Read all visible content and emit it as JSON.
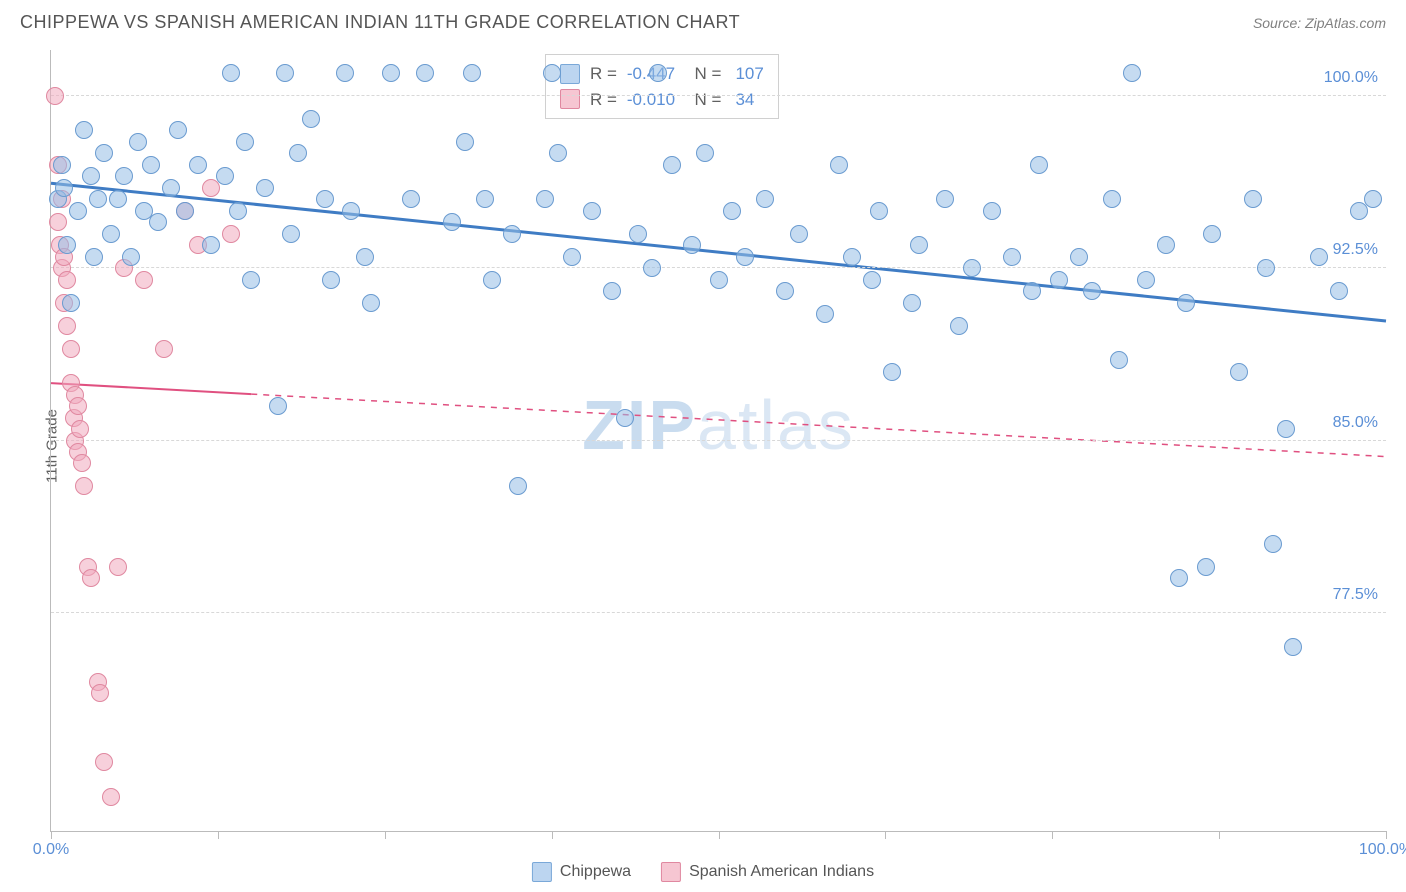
{
  "title": "CHIPPEWA VS SPANISH AMERICAN INDIAN 11TH GRADE CORRELATION CHART",
  "source": "Source: ZipAtlas.com",
  "watermark": {
    "prefix": "ZIP",
    "suffix": "atlas"
  },
  "chart": {
    "type": "scatter",
    "ylabel": "11th Grade",
    "xlim": [
      0,
      100
    ],
    "ylim": [
      68,
      102
    ],
    "x_ticks": [
      0,
      12.5,
      25,
      37.5,
      50,
      62.5,
      75,
      87.5,
      100
    ],
    "x_tick_labels": {
      "0": "0.0%",
      "100": "100.0%"
    },
    "y_gridlines": [
      77.5,
      85.0,
      92.5,
      100.0
    ],
    "y_tick_labels": [
      "77.5%",
      "85.0%",
      "92.5%",
      "100.0%"
    ],
    "background_color": "#ffffff",
    "grid_color": "#d8d8d8",
    "axis_color": "#bbbbbb",
    "series": {
      "chippewa": {
        "label": "Chippewa",
        "color_fill": "#bcd5f0",
        "color_stroke": "#6a9bd0",
        "marker_size": 18,
        "R": "-0.447",
        "N": "107",
        "trend": {
          "x1": 0,
          "y1": 96.2,
          "x2": 100,
          "y2": 90.2,
          "solid_until_x": 100,
          "stroke": "#3f7cc4",
          "width": 3
        },
        "points": [
          [
            0.5,
            95.5
          ],
          [
            0.8,
            97.0
          ],
          [
            1.0,
            96.0
          ],
          [
            1.2,
            93.5
          ],
          [
            1.5,
            91.0
          ],
          [
            2.0,
            95.0
          ],
          [
            2.5,
            98.5
          ],
          [
            3.0,
            96.5
          ],
          [
            3.2,
            93.0
          ],
          [
            3.5,
            95.5
          ],
          [
            4.0,
            97.5
          ],
          [
            4.5,
            94.0
          ],
          [
            5.0,
            95.5
          ],
          [
            5.5,
            96.5
          ],
          [
            6.0,
            93.0
          ],
          [
            6.5,
            98.0
          ],
          [
            7.0,
            95.0
          ],
          [
            7.5,
            97.0
          ],
          [
            8.0,
            94.5
          ],
          [
            9.0,
            96.0
          ],
          [
            9.5,
            98.5
          ],
          [
            10.0,
            95.0
          ],
          [
            11.0,
            97.0
          ],
          [
            12.0,
            93.5
          ],
          [
            13.0,
            96.5
          ],
          [
            13.5,
            101.0
          ],
          [
            14.0,
            95.0
          ],
          [
            14.5,
            98.0
          ],
          [
            15.0,
            92.0
          ],
          [
            16.0,
            96.0
          ],
          [
            17.0,
            86.5
          ],
          [
            17.5,
            101.0
          ],
          [
            18.0,
            94.0
          ],
          [
            18.5,
            97.5
          ],
          [
            19.5,
            99.0
          ],
          [
            20.5,
            95.5
          ],
          [
            21.0,
            92.0
          ],
          [
            22.0,
            101.0
          ],
          [
            22.5,
            95.0
          ],
          [
            23.5,
            93.0
          ],
          [
            24.0,
            91.0
          ],
          [
            25.5,
            101.0
          ],
          [
            27.0,
            95.5
          ],
          [
            28.0,
            101.0
          ],
          [
            30.0,
            94.5
          ],
          [
            31.0,
            98.0
          ],
          [
            31.5,
            101.0
          ],
          [
            32.5,
            95.5
          ],
          [
            33.0,
            92.0
          ],
          [
            34.5,
            94.0
          ],
          [
            35.0,
            83.0
          ],
          [
            37.0,
            95.5
          ],
          [
            37.5,
            101.0
          ],
          [
            38.0,
            97.5
          ],
          [
            39.0,
            93.0
          ],
          [
            40.5,
            95.0
          ],
          [
            42.0,
            91.5
          ],
          [
            43.0,
            86.0
          ],
          [
            44.0,
            94.0
          ],
          [
            45.0,
            92.5
          ],
          [
            45.5,
            101.0
          ],
          [
            46.5,
            97.0
          ],
          [
            48.0,
            93.5
          ],
          [
            49.0,
            97.5
          ],
          [
            50.0,
            92.0
          ],
          [
            51.0,
            95.0
          ],
          [
            52.0,
            93.0
          ],
          [
            53.5,
            95.5
          ],
          [
            55.0,
            91.5
          ],
          [
            56.0,
            94.0
          ],
          [
            58.0,
            90.5
          ],
          [
            59.0,
            97.0
          ],
          [
            60.0,
            93.0
          ],
          [
            61.5,
            92.0
          ],
          [
            62.0,
            95.0
          ],
          [
            63.0,
            88.0
          ],
          [
            64.5,
            91.0
          ],
          [
            65.0,
            93.5
          ],
          [
            67.0,
            95.5
          ],
          [
            68.0,
            90.0
          ],
          [
            69.0,
            92.5
          ],
          [
            70.5,
            95.0
          ],
          [
            72.0,
            93.0
          ],
          [
            73.5,
            91.5
          ],
          [
            74.0,
            97.0
          ],
          [
            75.5,
            92.0
          ],
          [
            77.0,
            93.0
          ],
          [
            78.0,
            91.5
          ],
          [
            79.5,
            95.5
          ],
          [
            80.0,
            88.5
          ],
          [
            81.0,
            101.0
          ],
          [
            82.0,
            92.0
          ],
          [
            83.5,
            93.5
          ],
          [
            84.5,
            79.0
          ],
          [
            85.0,
            91.0
          ],
          [
            86.5,
            79.5
          ],
          [
            87.0,
            94.0
          ],
          [
            89.0,
            88.0
          ],
          [
            90.0,
            95.5
          ],
          [
            91.0,
            92.5
          ],
          [
            91.5,
            80.5
          ],
          [
            92.5,
            85.5
          ],
          [
            93.0,
            76.0
          ],
          [
            95.0,
            93.0
          ],
          [
            96.5,
            91.5
          ],
          [
            98.0,
            95.0
          ],
          [
            99.0,
            95.5
          ]
        ]
      },
      "spanish": {
        "label": "Spanish American Indians",
        "color_fill": "#f6c6d2",
        "color_stroke": "#e088a0",
        "marker_size": 18,
        "R": "-0.010",
        "N": "34",
        "trend": {
          "x1": 0,
          "y1": 87.5,
          "x2": 100,
          "y2": 84.3,
          "solid_until_x": 15,
          "stroke": "#e05080",
          "width": 2
        },
        "points": [
          [
            0.3,
            100.0
          ],
          [
            0.5,
            97.0
          ],
          [
            0.5,
            94.5
          ],
          [
            0.7,
            93.5
          ],
          [
            0.8,
            92.5
          ],
          [
            0.8,
            95.5
          ],
          [
            1.0,
            91.0
          ],
          [
            1.0,
            93.0
          ],
          [
            1.2,
            90.0
          ],
          [
            1.2,
            92.0
          ],
          [
            1.5,
            89.0
          ],
          [
            1.5,
            87.5
          ],
          [
            1.7,
            86.0
          ],
          [
            1.8,
            85.0
          ],
          [
            1.8,
            87.0
          ],
          [
            2.0,
            84.5
          ],
          [
            2.0,
            86.5
          ],
          [
            2.2,
            85.5
          ],
          [
            2.3,
            84.0
          ],
          [
            2.5,
            83.0
          ],
          [
            2.8,
            79.5
          ],
          [
            3.0,
            79.0
          ],
          [
            3.5,
            74.5
          ],
          [
            3.7,
            74.0
          ],
          [
            4.0,
            71.0
          ],
          [
            4.5,
            69.5
          ],
          [
            5.0,
            79.5
          ],
          [
            5.5,
            92.5
          ],
          [
            7.0,
            92.0
          ],
          [
            8.5,
            89.0
          ],
          [
            10.0,
            95.0
          ],
          [
            11.0,
            93.5
          ],
          [
            12.0,
            96.0
          ],
          [
            13.5,
            94.0
          ]
        ]
      }
    }
  },
  "legend": {
    "chippewa": "Chippewa",
    "spanish": "Spanish American Indians"
  }
}
